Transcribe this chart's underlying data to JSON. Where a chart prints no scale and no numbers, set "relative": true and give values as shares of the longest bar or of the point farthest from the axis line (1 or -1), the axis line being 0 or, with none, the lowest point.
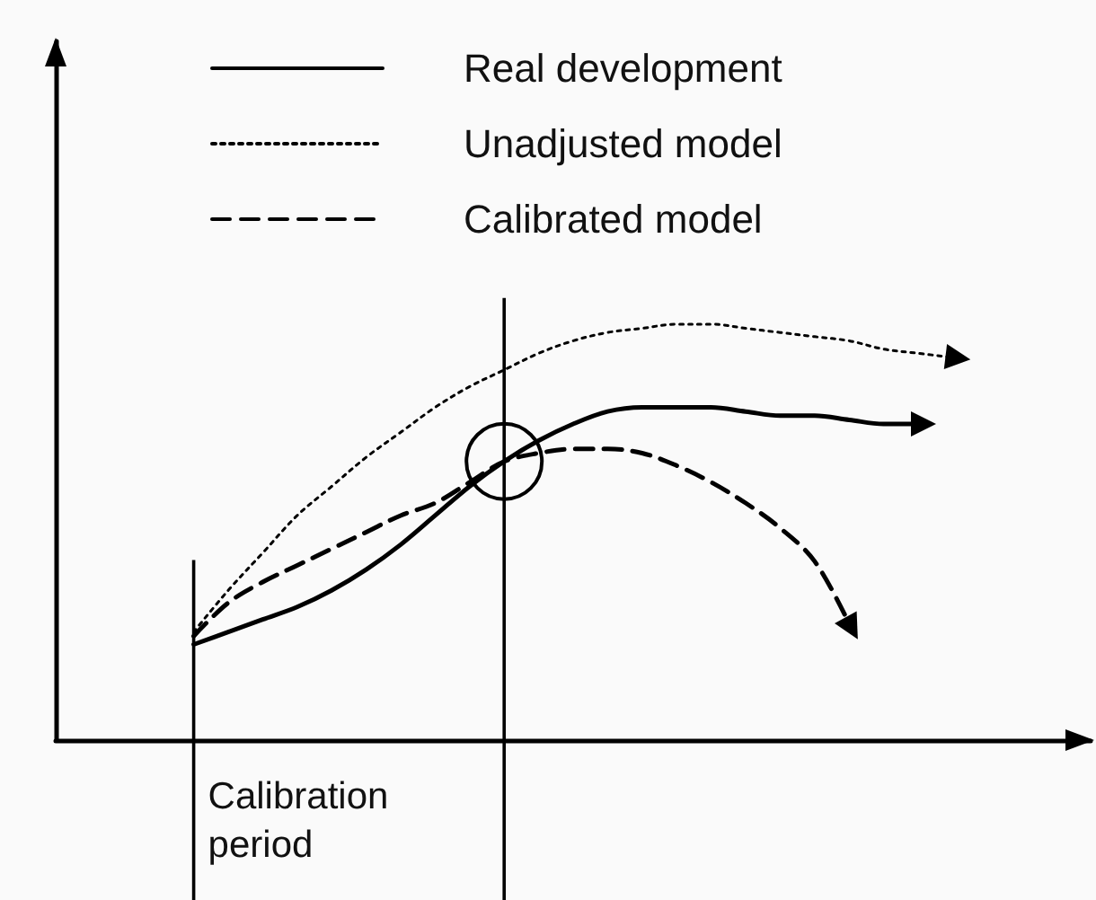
{
  "chart_data": {
    "type": "line",
    "relative": true,
    "legend": "top",
    "marker": "none",
    "grid": false,
    "annotations": [
      "Calibration period"
    ],
    "categories": [
      null,
      null,
      null,
      null,
      null,
      null,
      null,
      null,
      null,
      null,
      null,
      null,
      null,
      null,
      null,
      null,
      null,
      null,
      null,
      null,
      null,
      null,
      null,
      null,
      null,
      null,
      null,
      null,
      null,
      null,
      null
    ],
    "series": [
      {
        "name": "Real development",
        "color": "#000000",
        "line_style": "solid",
        "values": [
          null,
          null,
          null,
          null,
          0.23,
          0.26,
          0.29,
          0.32,
          0.36,
          0.41,
          0.47,
          0.54,
          0.61,
          0.67,
          0.72,
          0.76,
          0.79,
          0.8,
          0.8,
          0.8,
          0.79,
          0.78,
          0.78,
          0.77,
          0.76,
          0.76,
          null,
          null,
          null,
          null,
          null
        ]
      },
      {
        "name": "Unadjusted model",
        "color": "#000000",
        "line_style": "dotted",
        "values": [
          null,
          null,
          null,
          null,
          0.26,
          0.36,
          0.45,
          0.54,
          0.61,
          0.68,
          0.74,
          0.8,
          0.85,
          0.89,
          0.93,
          0.96,
          0.98,
          0.99,
          1,
          1,
          0.99,
          0.98,
          0.97,
          0.96,
          0.94,
          0.93,
          0.92,
          null,
          null,
          null,
          null
        ]
      },
      {
        "name": "Calibrated model",
        "color": "#000000",
        "line_style": "dashed",
        "values": [
          null,
          null,
          null,
          null,
          0.25,
          0.33,
          0.38,
          0.42,
          0.46,
          0.5,
          0.54,
          0.57,
          0.62,
          0.67,
          0.69,
          0.7,
          0.7,
          0.69,
          0.66,
          0.62,
          0.57,
          0.51,
          0.43,
          0.28,
          null,
          null,
          null,
          null,
          null,
          null,
          null
        ]
      }
    ]
  }
}
